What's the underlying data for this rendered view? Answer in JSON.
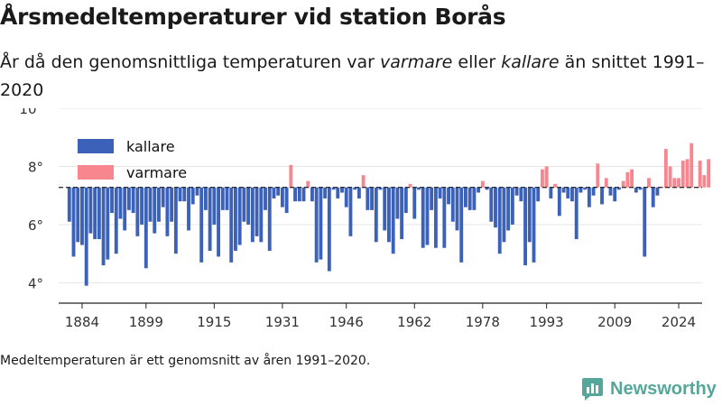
{
  "header": {
    "title": "Årsmedeltemperaturer vid station Borås",
    "subtitle_part1": "År då den genomsnittliga temperaturen var ",
    "subtitle_warm": "varmare",
    "subtitle_part2": " eller ",
    "subtitle_cold": "kallare",
    "subtitle_part3": " än snittet 1991–2020"
  },
  "footnote": "Medeltemperaturen är ett genomsnitt av åren 1991–2020.",
  "brand": {
    "name": "Newsworthy",
    "icon": "newsworthy-logo-icon",
    "color": "#56a79b"
  },
  "colors": {
    "kallare": "#3b61b8",
    "varmare": "#f7868f",
    "baseline": "#333333",
    "axis": "#222222"
  },
  "chart_data": {
    "type": "bar",
    "title": "Årsmedeltemperaturer vid station Borås",
    "xlabel": "",
    "ylabel": "",
    "baseline": 7.28,
    "ylim": [
      3.3,
      10
    ],
    "xlim": [
      1878.5,
      2029.5
    ],
    "yticks": [
      4,
      6,
      8,
      10
    ],
    "ytick_labels": [
      "4°",
      "6°",
      "8°",
      "10°"
    ],
    "xticks": [
      1884,
      1899,
      1915,
      1931,
      1946,
      1962,
      1978,
      1993,
      2009,
      2024
    ],
    "legend": {
      "placement": "top-left",
      "entries": [
        {
          "key": "kallare",
          "label": "kallare"
        },
        {
          "key": "varmare",
          "label": "varmare"
        }
      ]
    },
    "grid": true,
    "x_start": 1881,
    "values": [
      6.1,
      4.9,
      5.4,
      5.3,
      3.9,
      5.7,
      5.5,
      5.5,
      4.6,
      4.8,
      6.4,
      5.0,
      6.2,
      5.8,
      6.5,
      6.4,
      5.6,
      6.0,
      4.5,
      6.1,
      5.7,
      6.1,
      6.6,
      5.6,
      6.1,
      5.0,
      6.8,
      6.8,
      5.8,
      6.7,
      7.0,
      4.7,
      6.5,
      5.1,
      6.0,
      4.9,
      6.5,
      6.5,
      4.7,
      5.1,
      5.3,
      6.1,
      6.0,
      5.4,
      5.6,
      5.4,
      6.5,
      5.1,
      6.9,
      7.0,
      6.6,
      6.4,
      8.05,
      6.8,
      6.8,
      6.8,
      7.5,
      6.8,
      4.7,
      4.8,
      6.9,
      4.4,
      7.2,
      6.9,
      7.1,
      6.6,
      5.6,
      7.2,
      6.9,
      7.7,
      6.5,
      6.5,
      5.4,
      7.2,
      5.8,
      5.4,
      5.0,
      6.2,
      5.5,
      6.4,
      7.4,
      6.2,
      7.2,
      5.2,
      5.3,
      6.5,
      5.2,
      6.9,
      5.2,
      6.7,
      6.1,
      5.8,
      4.7,
      6.6,
      6.5,
      6.5,
      7.1,
      7.5,
      7.2,
      6.1,
      5.9,
      5.0,
      5.4,
      5.8,
      6.0,
      7.0,
      6.8,
      4.6,
      5.4,
      4.7,
      6.8,
      7.9,
      8.0,
      6.9,
      7.4,
      6.3,
      7.1,
      6.9,
      6.8,
      5.5,
      7.1,
      7.2,
      6.6,
      7.0,
      8.1,
      6.7,
      7.6,
      7.0,
      6.8,
      7.2,
      7.5,
      7.8,
      7.9,
      7.1,
      7.2,
      4.9,
      7.6,
      6.6,
      7.0,
      7.3,
      8.6,
      8.0,
      7.6,
      7.6,
      8.2,
      8.25,
      8.8,
      7.3,
      8.2,
      7.7,
      8.25
    ]
  }
}
